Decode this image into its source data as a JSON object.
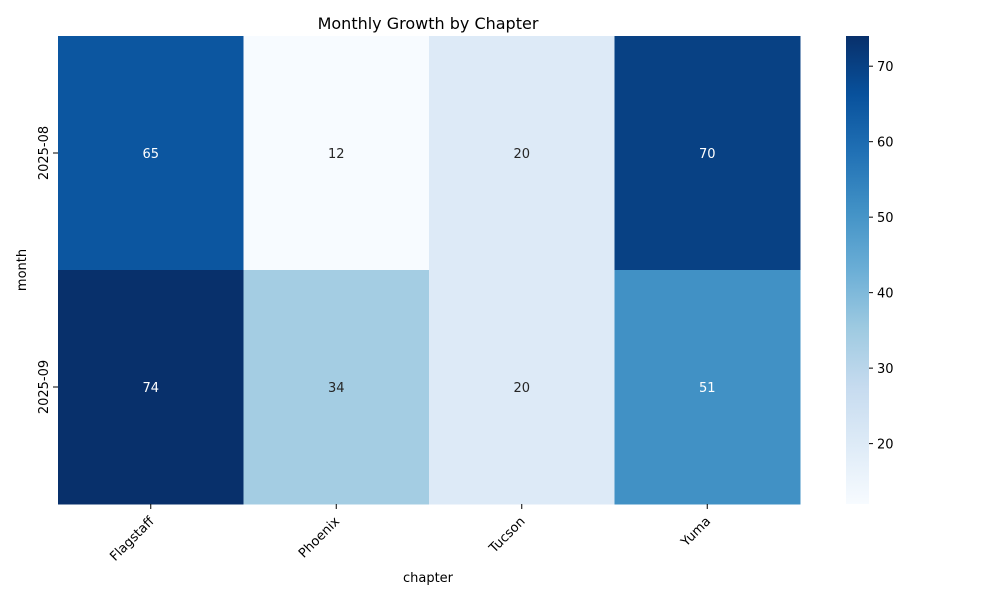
{
  "chart_data": {
    "type": "heatmap",
    "title": "Monthly Growth by Chapter",
    "xlabel": "chapter",
    "ylabel": "month",
    "x_categories": [
      "Flagstaff",
      "Phoenix",
      "Tucson",
      "Yuma"
    ],
    "y_categories": [
      "2025-08",
      "2025-09"
    ],
    "values": [
      [
        65,
        12,
        20,
        70
      ],
      [
        74,
        34,
        20,
        51
      ]
    ],
    "annotated": true,
    "colormap": "Blues",
    "color_range": [
      12,
      74
    ],
    "colorbar_ticks": [
      20,
      30,
      40,
      50,
      60,
      70
    ],
    "colorbar_position": "right"
  }
}
